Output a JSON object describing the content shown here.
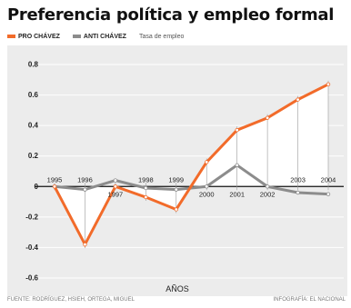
{
  "title": "Preferencia política y empleo formal",
  "legend": {
    "series": [
      {
        "label": "PRO CHÁVEZ",
        "color": "#f26b2a"
      },
      {
        "label": "ANTI CHÁVEZ",
        "color": "#8c8c8c"
      }
    ],
    "note": "Tasa de empleo"
  },
  "footer": {
    "source": "FUENTE: RODRÍGUEZ, HSIEH, ORTEGA, MIGUEL",
    "credit": "INFOGRAFÍA: EL NACIONAL"
  },
  "chart_data": {
    "type": "line",
    "x": [
      1995,
      1996,
      1997,
      1998,
      1999,
      2000,
      2001,
      2002,
      2003,
      2004
    ],
    "x_labels": [
      "1995",
      "1996",
      "1997",
      "1998",
      "1999",
      "2000",
      "2001",
      "2002",
      "2003",
      "2004"
    ],
    "series": [
      {
        "name": "PRO CHÁVEZ",
        "color": "#f26b2a",
        "values": [
          0.0,
          -0.38,
          0.0,
          -0.07,
          -0.15,
          0.16,
          0.37,
          0.45,
          0.57,
          0.67
        ]
      },
      {
        "name": "ANTI CHÁVEZ",
        "color": "#8c8c8c",
        "values": [
          0.0,
          -0.02,
          0.04,
          -0.01,
          -0.02,
          0.0,
          0.14,
          0.0,
          -0.04,
          -0.05
        ]
      }
    ],
    "xlabel": "AÑOS",
    "ylabel": "",
    "ylim": [
      -0.65,
      0.85
    ],
    "yticks": [
      -0.6,
      -0.4,
      -0.2,
      0,
      0.2,
      0.4,
      0.6,
      0.8
    ],
    "ytick_labels": [
      "-0.6",
      "-0.4",
      "-0.2",
      "0",
      "0.2",
      "0.4",
      "0.6",
      "0.8"
    ],
    "label_position": [
      "above",
      "above",
      "below",
      "above",
      "above",
      "below",
      "below",
      "below",
      "above",
      "above"
    ],
    "grid": true,
    "legend_position": "top-left"
  }
}
